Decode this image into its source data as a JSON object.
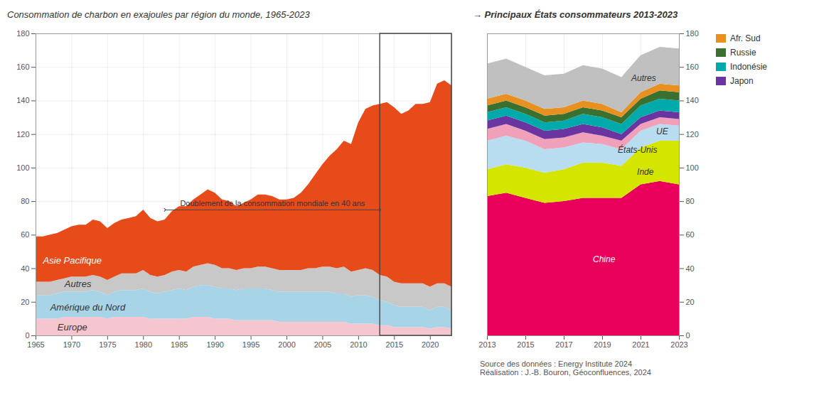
{
  "chart_data": [
    {
      "type": "area",
      "stacked": true,
      "title": "Consommation de charbon en exajoules par région du monde, 1965-2023",
      "x": [
        1965,
        1966,
        1967,
        1968,
        1969,
        1970,
        1971,
        1972,
        1973,
        1974,
        1975,
        1976,
        1977,
        1978,
        1979,
        1980,
        1981,
        1982,
        1983,
        1984,
        1985,
        1986,
        1987,
        1988,
        1989,
        1990,
        1991,
        1992,
        1993,
        1994,
        1995,
        1996,
        1997,
        1998,
        1999,
        2000,
        2001,
        2002,
        2003,
        2004,
        2005,
        2006,
        2007,
        2008,
        2009,
        2010,
        2011,
        2012,
        2013,
        2014,
        2015,
        2016,
        2017,
        2018,
        2019,
        2020,
        2021,
        2022,
        2023
      ],
      "series": [
        {
          "name": "Europe",
          "color": "#f5c6d0",
          "values": [
            10,
            10,
            10,
            10,
            11,
            11,
            11,
            11,
            11,
            11,
            10,
            11,
            11,
            11,
            11,
            11,
            10,
            10,
            10,
            10,
            10,
            10,
            11,
            11,
            11,
            10,
            10,
            10,
            9,
            9,
            9,
            9,
            9,
            9,
            8,
            8,
            8,
            8,
            8,
            8,
            8,
            8,
            8,
            8,
            7,
            7,
            7,
            7,
            6,
            6,
            5,
            5,
            5,
            5,
            5,
            4,
            5,
            5,
            4
          ]
        },
        {
          "name": "Amérique du Nord",
          "color": "#a8d4e8",
          "values": [
            14,
            14,
            14,
            15,
            15,
            15,
            15,
            15,
            16,
            15,
            14,
            15,
            16,
            16,
            16,
            17,
            16,
            15,
            16,
            17,
            18,
            17,
            18,
            19,
            19,
            19,
            18,
            18,
            18,
            19,
            19,
            19,
            19,
            18,
            18,
            18,
            18,
            18,
            18,
            18,
            18,
            18,
            17,
            17,
            16,
            17,
            17,
            16,
            15,
            14,
            13,
            12,
            12,
            12,
            12,
            11,
            12,
            12,
            11
          ]
        },
        {
          "name": "Autres",
          "color": "#c8c8c8",
          "values": [
            8,
            8,
            8,
            8,
            8,
            9,
            9,
            9,
            9,
            9,
            9,
            9,
            10,
            10,
            10,
            11,
            10,
            10,
            10,
            11,
            11,
            11,
            12,
            12,
            13,
            13,
            12,
            12,
            12,
            12,
            12,
            13,
            13,
            13,
            13,
            13,
            13,
            13,
            14,
            14,
            15,
            15,
            15,
            16,
            15,
            15,
            16,
            16,
            15,
            15,
            14,
            14,
            14,
            14,
            14,
            14,
            14,
            14,
            14
          ]
        },
        {
          "name": "Asie Pacifique",
          "color": "#e84b1a",
          "values": [
            27,
            27,
            28,
            28,
            29,
            30,
            31,
            31,
            33,
            33,
            31,
            32,
            32,
            33,
            34,
            36,
            34,
            33,
            33,
            36,
            38,
            39,
            40,
            42,
            44,
            43,
            41,
            40,
            38,
            39,
            41,
            43,
            43,
            43,
            42,
            42,
            43,
            46,
            50,
            56,
            61,
            66,
            71,
            75,
            76,
            88,
            95,
            98,
            102,
            104,
            104,
            101,
            103,
            107,
            107,
            110,
            119,
            121,
            120
          ]
        }
      ],
      "xlim": [
        1965,
        2023
      ],
      "xticks": [
        1965,
        1970,
        1975,
        1980,
        1985,
        1990,
        1995,
        2000,
        2005,
        2010,
        2015,
        2020
      ],
      "ylim": [
        0,
        180
      ],
      "yticks": [
        0,
        20,
        40,
        60,
        80,
        100,
        120,
        140,
        160,
        180
      ],
      "grid": true,
      "highlight": [
        2013,
        2023
      ],
      "annotations": [
        {
          "text": "Europe",
          "x": 1968,
          "y": 3
        },
        {
          "text": "Amérique du Nord",
          "x": 1967,
          "y": 15
        },
        {
          "text": "Autres",
          "x": 1969,
          "y": 29
        },
        {
          "text": "Asie Pacifique",
          "x": 1966,
          "y": 43
        },
        {
          "text": "Doublement de la consommation mondiale en 40 ans",
          "x": 1998,
          "y": 75,
          "arrow_from": 1983,
          "arrow_to": 2013
        }
      ]
    },
    {
      "type": "area",
      "stacked": true,
      "title": "→ Principaux États consommateurs 2013-2023",
      "x": [
        2013,
        2014,
        2015,
        2016,
        2017,
        2018,
        2019,
        2020,
        2021,
        2022,
        2023
      ],
      "series": [
        {
          "name": "Chine",
          "color": "#e8005a",
          "values": [
            83,
            85,
            82,
            79,
            80,
            82,
            82,
            82,
            90,
            92,
            90
          ]
        },
        {
          "name": "Inde",
          "color": "#d4e600",
          "values": [
            16,
            17,
            18,
            18,
            19,
            21,
            21,
            19,
            22,
            24,
            26
          ]
        },
        {
          "name": "États-Unis",
          "color": "#b8dcf0",
          "values": [
            17,
            17,
            16,
            14,
            13,
            12,
            11,
            10,
            10,
            10,
            9
          ]
        },
        {
          "name": "UE",
          "color": "#f0a0b8",
          "values": [
            7,
            7,
            6,
            6,
            6,
            6,
            5,
            5,
            4,
            4,
            4
          ]
        },
        {
          "name": "Japon",
          "color": "#6a35a0",
          "values": [
            5,
            5,
            5,
            5,
            5,
            5,
            5,
            4,
            4,
            4,
            4
          ]
        },
        {
          "name": "Indonésie",
          "color": "#00aaaa",
          "values": [
            5,
            5,
            5,
            5,
            5,
            6,
            6,
            6,
            7,
            7,
            7
          ]
        },
        {
          "name": "Russie",
          "color": "#3a7030",
          "values": [
            4,
            4,
            4,
            4,
            4,
            4,
            4,
            4,
            4,
            5,
            5
          ]
        },
        {
          "name": "Afr. Sud",
          "color": "#e89020",
          "values": [
            4,
            4,
            4,
            4,
            4,
            4,
            4,
            3,
            4,
            4,
            4
          ]
        },
        {
          "name": "Autres",
          "color": "#c0c0c0",
          "values": [
            21,
            21,
            20,
            20,
            20,
            21,
            21,
            21,
            22,
            22,
            22
          ]
        }
      ],
      "xlim": [
        2013,
        2023
      ],
      "xticks": [
        2013,
        2015,
        2017,
        2019,
        2021,
        2023
      ],
      "ylim": [
        0,
        180
      ],
      "yticks": [
        0,
        20,
        40,
        60,
        80,
        100,
        120,
        140,
        160,
        180
      ],
      "grid": true,
      "legend": "right",
      "annotations": [
        {
          "text": "Chine",
          "x": 2018.5,
          "y": 44
        },
        {
          "text": "Inde",
          "x": 2020.8,
          "y": 96
        },
        {
          "text": "États-Unis",
          "x": 2019.8,
          "y": 109
        },
        {
          "text": "UE",
          "x": 2021.8,
          "y": 120
        },
        {
          "text": "Autres",
          "x": 2020.5,
          "y": 152
        }
      ],
      "caption": "Source des données : Energy Institute 2024\nRéalisation : J.-B. Bouron, Géoconfluences, 2024"
    }
  ]
}
